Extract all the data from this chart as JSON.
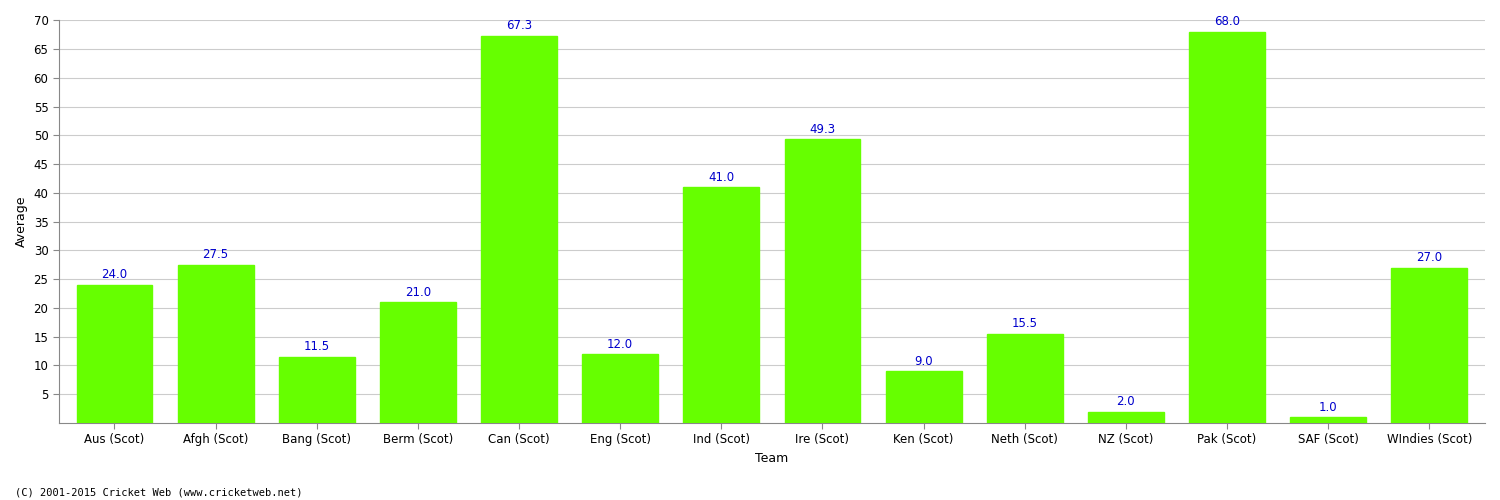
{
  "categories": [
    "Aus (Scot)",
    "Afgh (Scot)",
    "Bang (Scot)",
    "Berm (Scot)",
    "Can (Scot)",
    "Eng (Scot)",
    "Ind (Scot)",
    "Ire (Scot)",
    "Ken (Scot)",
    "Neth (Scot)",
    "NZ (Scot)",
    "Pak (Scot)",
    "SAF (Scot)",
    "WIndies (Scot)"
  ],
  "values": [
    24.0,
    27.5,
    11.5,
    21.0,
    67.3,
    12.0,
    41.0,
    49.3,
    9.0,
    15.5,
    2.0,
    68.0,
    1.0,
    27.0
  ],
  "bar_color": "#66ff00",
  "label_color": "#0000cc",
  "ylabel": "Average",
  "xlabel": "Team",
  "ylim": [
    0,
    70
  ],
  "yticks": [
    5,
    10,
    15,
    20,
    25,
    30,
    35,
    40,
    45,
    50,
    55,
    60,
    65,
    70
  ],
  "background_color": "#ffffff",
  "grid_color": "#cccccc",
  "label_fontsize": 8.5,
  "axis_label_fontsize": 9,
  "tick_fontsize": 8.5,
  "bar_width": 0.75,
  "footer_text": "(C) 2001-2015 Cricket Web (www.cricketweb.net)"
}
